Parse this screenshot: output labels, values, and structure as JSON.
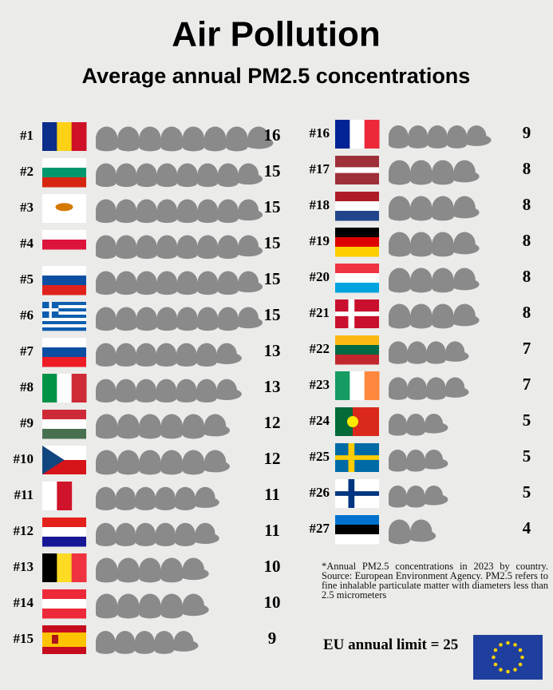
{
  "chart_data": {
    "type": "pictogram",
    "title": "Air Pollution",
    "subtitle": "Average annual PM2.5 concentrations",
    "categories": [
      "#1",
      "#2",
      "#3",
      "#4",
      "#5",
      "#6",
      "#7",
      "#8",
      "#9",
      "#10",
      "#11",
      "#12",
      "#13",
      "#14",
      "#15",
      "#16",
      "#17",
      "#18",
      "#19",
      "#20",
      "#21",
      "#22",
      "#23",
      "#24",
      "#25",
      "#26",
      "#27"
    ],
    "values": [
      16,
      15,
      15,
      15,
      15,
      15,
      13,
      13,
      12,
      12,
      11,
      11,
      10,
      10,
      9,
      9,
      8,
      8,
      8,
      8,
      8,
      7,
      7,
      5,
      5,
      5,
      4
    ],
    "color": "#8a8a8a",
    "note": "*Annual PM2.5 concentrations in 2023 by country. Source: European Environment Agency. PM2.5 refers to fine inhalable particulate matter with diameters less than 2.5 micrometers",
    "annotation": "EU annual limit = 25"
  }
}
